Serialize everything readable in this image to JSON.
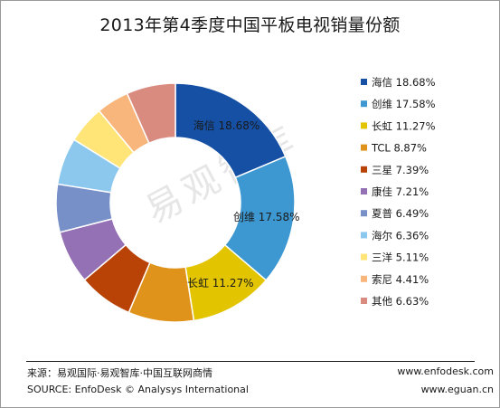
{
  "title": "2013年第4季度中国平板电视销量份额",
  "watermark": "易观智库",
  "footer": {
    "source_cn": "来源：易观国际·易观智库·中国互联网商情",
    "source_en": "SOURCE: EnfoDesk © Analysys International",
    "url1": "www.enfodesk.com",
    "url2": "www.eguan.cn"
  },
  "chart_data": {
    "type": "pie",
    "donut": true,
    "title": "2013年第4季度中国平板电视销量份额",
    "legend_position": "right",
    "categories": [
      "海信",
      "创维",
      "长虹",
      "TCL",
      "三星",
      "康佳",
      "夏普",
      "海尔",
      "三洋",
      "索尼",
      "其他"
    ],
    "values": [
      18.68,
      17.58,
      11.27,
      8.87,
      7.39,
      7.21,
      6.49,
      6.36,
      5.11,
      4.41,
      6.63
    ],
    "value_format": "{v}%",
    "slice_labels_shown": [
      0,
      1,
      2
    ],
    "colors": [
      "#1550a5",
      "#3d98d2",
      "#e2c400",
      "#e0931a",
      "#b94306",
      "#9470b5",
      "#7890c8",
      "#8cc8ee",
      "#ffe578",
      "#f9b67c",
      "#d98b80"
    ]
  }
}
